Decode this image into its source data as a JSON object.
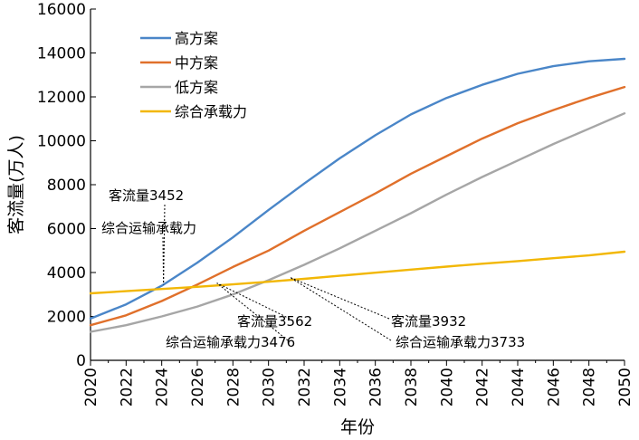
{
  "chart_data": {
    "type": "line",
    "title": "",
    "xlabel": "年份",
    "ylabel": "客流量(万人)",
    "xlim": [
      2020,
      2050
    ],
    "ylim": [
      0,
      16000
    ],
    "x_ticks": [
      2020,
      2022,
      2024,
      2026,
      2028,
      2030,
      2032,
      2034,
      2036,
      2038,
      2040,
      2042,
      2044,
      2046,
      2048,
      2050
    ],
    "y_ticks": [
      0,
      2000,
      4000,
      6000,
      8000,
      10000,
      12000,
      14000,
      16000
    ],
    "grid": false,
    "legend_position": "top-left",
    "x": [
      2020,
      2022,
      2024,
      2026,
      2028,
      2030,
      2032,
      2034,
      2036,
      2038,
      2040,
      2042,
      2044,
      2046,
      2048,
      2050
    ],
    "series": [
      {
        "name": "高方案",
        "color": "#4a86c8",
        "values": [
          1900,
          2550,
          3400,
          4450,
          5600,
          6850,
          8050,
          9200,
          10250,
          11200,
          11950,
          12550,
          13050,
          13400,
          13620,
          13730
        ]
      },
      {
        "name": "中方案",
        "color": "#e0702b",
        "values": [
          1600,
          2050,
          2700,
          3450,
          4250,
          5000,
          5900,
          6750,
          7600,
          8500,
          9300,
          10100,
          10800,
          11400,
          11950,
          12450
        ]
      },
      {
        "name": "低方案",
        "color": "#a6a6a6",
        "values": [
          1300,
          1600,
          2000,
          2450,
          3000,
          3650,
          4350,
          5100,
          5900,
          6700,
          7550,
          8350,
          9100,
          9850,
          10550,
          11250
        ]
      },
      {
        "name": "综合承载力",
        "color": "#f2b705",
        "values": [
          3050,
          3150,
          3250,
          3350,
          3460,
          3580,
          3710,
          3850,
          3990,
          4130,
          4270,
          4400,
          4520,
          4650,
          4780,
          4950
        ]
      }
    ],
    "annotations": [
      {
        "label1": "客流量3452",
        "label2": "综合运输承载力",
        "x": 2024.1,
        "y": 3452
      },
      {
        "label1": "客流量3562",
        "label2": "综合运输承载力3476",
        "x": 2027.1,
        "y": 3520
      },
      {
        "label1": "客流量3932",
        "label2": "综合运输承载力3733",
        "x": 2031.2,
        "y": 3780
      }
    ]
  }
}
